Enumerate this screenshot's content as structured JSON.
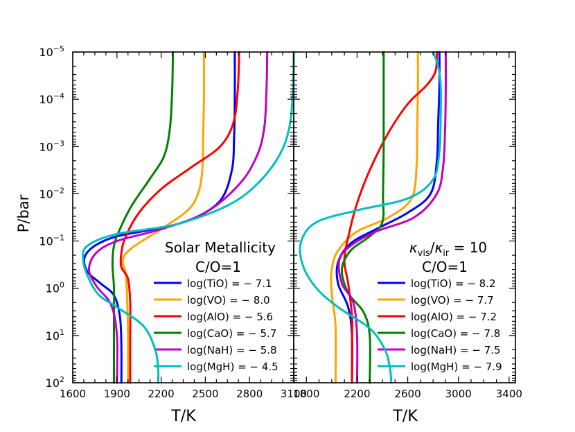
{
  "chart_data": {
    "ylabel": "P/bar",
    "panels": [
      {
        "type": "line",
        "xlabel": "T/K",
        "xlim": [
          1600,
          3100
        ],
        "xticks": [
          1600,
          1900,
          2200,
          2500,
          2800,
          3100
        ],
        "ylim_log10": [
          2,
          -5
        ],
        "yticks": [
          {
            "base": "10",
            "exp": "−5",
            "log10": -5
          },
          {
            "base": "10",
            "exp": "−4",
            "log10": -4
          },
          {
            "base": "10",
            "exp": "−3",
            "log10": -3
          },
          {
            "base": "10",
            "exp": "−2",
            "log10": -2
          },
          {
            "base": "10",
            "exp": "−1",
            "log10": -1
          },
          {
            "base": "10",
            "exp": "0",
            "log10": 0
          },
          {
            "base": "10",
            "exp": "1",
            "log10": 1
          },
          {
            "base": "10",
            "exp": "2",
            "log10": 2
          }
        ],
        "annotation": [
          "Solar Metallicity",
          "C/O=1"
        ],
        "series": [
          {
            "name": "log(TiO) = − 7.1",
            "color": "#0000ff",
            "points": [
              [
                2700,
                -5
              ],
              [
                2700,
                -4
              ],
              [
                2695,
                -3.2
              ],
              [
                2680,
                -2.5
              ],
              [
                2600,
                -1.85
              ],
              [
                2400,
                -1.45
              ],
              [
                2150,
                -1.25
              ],
              [
                1900,
                -1.1
              ],
              [
                1750,
                -0.9
              ],
              [
                1680,
                -0.65
              ],
              [
                1700,
                -0.35
              ],
              [
                1790,
                -0.1
              ],
              [
                1880,
                0.15
              ],
              [
                1920,
                0.6
              ],
              [
                1930,
                1.2
              ],
              [
                1930,
                2
              ]
            ]
          },
          {
            "name": "log(VO) = − 8.0",
            "color": "#ffa500",
            "points": [
              [
                2490,
                -5
              ],
              [
                2490,
                -4
              ],
              [
                2485,
                -3.2
              ],
              [
                2480,
                -2.5
              ],
              [
                2450,
                -2
              ],
              [
                2380,
                -1.65
              ],
              [
                2200,
                -1.25
              ],
              [
                2000,
                -0.85
              ],
              [
                1940,
                -0.6
              ],
              [
                1960,
                -0.3
              ],
              [
                1970,
                0.3
              ],
              [
                1975,
                1
              ],
              [
                1975,
                2
              ]
            ]
          },
          {
            "name": "log(AlO) = − 5.6",
            "color": "#ff0000",
            "points": [
              [
                2730,
                -5
              ],
              [
                2720,
                -4.2
              ],
              [
                2690,
                -3.5
              ],
              [
                2600,
                -3
              ],
              [
                2400,
                -2.55
              ],
              [
                2200,
                -2.1
              ],
              [
                2050,
                -1.6
              ],
              [
                1960,
                -1.1
              ],
              [
                1930,
                -0.75
              ],
              [
                1930,
                -0.45
              ],
              [
                1975,
                -0.2
              ],
              [
                1990,
                0.3
              ],
              [
                1990,
                1
              ],
              [
                1990,
                2
              ]
            ]
          },
          {
            "name": "log(CaO) = − 5.7",
            "color": "#008000",
            "points": [
              [
                2280,
                -5
              ],
              [
                2275,
                -4.2
              ],
              [
                2260,
                -3.4
              ],
              [
                2220,
                -2.8
              ],
              [
                2120,
                -2.3
              ],
              [
                2000,
                -1.75
              ],
              [
                1920,
                -1.25
              ],
              [
                1880,
                -0.9
              ],
              [
                1870,
                -0.5
              ],
              [
                1880,
                0
              ],
              [
                1880,
                0.8
              ],
              [
                1880,
                2
              ]
            ]
          },
          {
            "name": "log(NaH) = − 5.8",
            "color": "#bf00bf",
            "points": [
              [
                2920,
                -5
              ],
              [
                2915,
                -4.2
              ],
              [
                2900,
                -3.4
              ],
              [
                2850,
                -2.8
              ],
              [
                2730,
                -2.2
              ],
              [
                2500,
                -1.6
              ],
              [
                2200,
                -1.25
              ],
              [
                1900,
                -1.0
              ],
              [
                1760,
                -0.75
              ],
              [
                1710,
                -0.4
              ],
              [
                1760,
                -0.05
              ],
              [
                1860,
                0.35
              ],
              [
                1900,
                1
              ],
              [
                1900,
                2
              ]
            ]
          },
          {
            "name": "log(MgH) = − 4.5",
            "color": "#00bfbf",
            "points": [
              [
                3100,
                -5
              ],
              [
                3095,
                -4.2
              ],
              [
                3070,
                -3.4
              ],
              [
                3000,
                -2.8
              ],
              [
                2850,
                -2.2
              ],
              [
                2650,
                -1.75
              ],
              [
                2300,
                -1.35
              ],
              [
                1900,
                -1.15
              ],
              [
                1700,
                -0.9
              ],
              [
                1670,
                -0.6
              ],
              [
                1710,
                -0.2
              ],
              [
                1780,
                0.15
              ],
              [
                1900,
                0.4
              ],
              [
                2080,
                0.8
              ],
              [
                2160,
                1.3
              ],
              [
                2180,
                1.7
              ],
              [
                2180,
                2
              ]
            ]
          }
        ]
      },
      {
        "type": "line",
        "xlabel": "T/K",
        "xlim": [
          1700,
          3450
        ],
        "xticks": [
          1800,
          2200,
          2600,
          3000,
          3400
        ],
        "ylim_log10": [
          2,
          -5
        ],
        "annotation_parts": {
          "kappa": "κ",
          "vis": "vis",
          "slash": "/",
          "ir": "ir",
          "equals": " = 10"
        },
        "annotation_line2": "C/O=1",
        "series": [
          {
            "name": "log(TiO) = − 8.2",
            "color": "#0000ff",
            "points": [
              [
                2850,
                -5
              ],
              [
                2850,
                -4.3
              ],
              [
                2840,
                -3.5
              ],
              [
                2830,
                -2.7
              ],
              [
                2780,
                -2
              ],
              [
                2600,
                -1.6
              ],
              [
                2350,
                -1.25
              ],
              [
                2150,
                -0.95
              ],
              [
                2050,
                -0.55
              ],
              [
                2050,
                -0.1
              ],
              [
                2130,
                0.4
              ],
              [
                2160,
                1
              ],
              [
                2160,
                2
              ]
            ]
          },
          {
            "name": "log(VO) = − 7.7",
            "color": "#ffa500",
            "points": [
              [
                2680,
                -5
              ],
              [
                2680,
                -4.2
              ],
              [
                2675,
                -3.4
              ],
              [
                2670,
                -2.6
              ],
              [
                2630,
                -1.9
              ],
              [
                2450,
                -1.5
              ],
              [
                2200,
                -1.2
              ],
              [
                2050,
                -0.8
              ],
              [
                2000,
                -0.4
              ],
              [
                2000,
                0.1
              ],
              [
                2030,
                0.8
              ],
              [
                2030,
                2
              ]
            ]
          },
          {
            "name": "log(AlO) = − 7.2",
            "color": "#ff0000",
            "points": [
              [
                2830,
                -5
              ],
              [
                2820,
                -4.6
              ],
              [
                2750,
                -4.3
              ],
              [
                2600,
                -3.9
              ],
              [
                2450,
                -3.3
              ],
              [
                2300,
                -2.5
              ],
              [
                2200,
                -1.8
              ],
              [
                2140,
                -1.2
              ],
              [
                2100,
                -0.6
              ],
              [
                2130,
                -0.1
              ],
              [
                2160,
                0.6
              ],
              [
                2160,
                1.2
              ],
              [
                2160,
                2
              ]
            ]
          },
          {
            "name": "log(CaO) = − 7.8",
            "color": "#008000",
            "points": [
              [
                2410,
                -5
              ],
              [
                2410,
                -4
              ],
              [
                2410,
                -3
              ],
              [
                2405,
                -2
              ],
              [
                2400,
                -1.4
              ],
              [
                2300,
                -1.1
              ],
              [
                2150,
                -0.8
              ],
              [
                2080,
                -0.4
              ],
              [
                2130,
                0.1
              ],
              [
                2250,
                0.5
              ],
              [
                2300,
                1
              ],
              [
                2300,
                2
              ]
            ]
          },
          {
            "name": "log(NaH) = − 7.5",
            "color": "#bf00bf",
            "points": [
              [
                2900,
                -5
              ],
              [
                2900,
                -4.2
              ],
              [
                2895,
                -3.4
              ],
              [
                2880,
                -2.6
              ],
              [
                2830,
                -2
              ],
              [
                2650,
                -1.5
              ],
              [
                2350,
                -1.2
              ],
              [
                2150,
                -0.9
              ],
              [
                2060,
                -0.6
              ],
              [
                2080,
                -0.1
              ],
              [
                2170,
                0.3
              ],
              [
                2200,
                1
              ],
              [
                2200,
                2
              ]
            ]
          },
          {
            "name": "log(MgH) = − 7.9",
            "color": "#00bfbf",
            "points": [
              [
                2800,
                -5
              ],
              [
                2840,
                -4.7
              ],
              [
                2860,
                -4.3
              ],
              [
                2860,
                -3.6
              ],
              [
                2850,
                -2.9
              ],
              [
                2800,
                -2.3
              ],
              [
                2600,
                -1.9
              ],
              [
                2200,
                -1.65
              ],
              [
                1880,
                -1.4
              ],
              [
                1760,
                -1
              ],
              [
                1770,
                -0.5
              ],
              [
                1880,
                0
              ],
              [
                2050,
                0.4
              ],
              [
                2300,
                0.85
              ],
              [
                2420,
                1.3
              ],
              [
                2460,
                1.7
              ],
              [
                2470,
                2
              ]
            ]
          }
        ]
      }
    ]
  }
}
